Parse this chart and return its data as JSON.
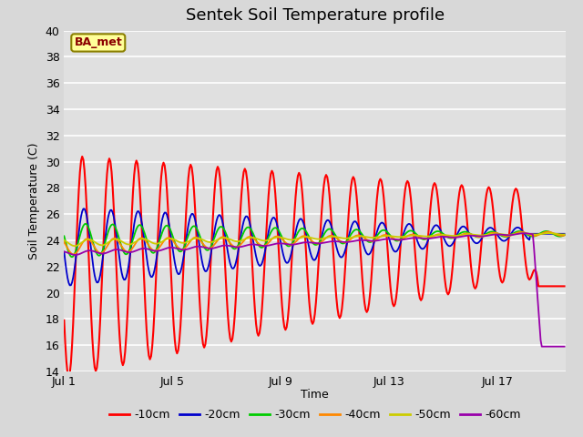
{
  "title": "Sentek Soil Temperature profile",
  "xlabel": "Time",
  "ylabel": "Soil Temperature (C)",
  "ylim": [
    14,
    40
  ],
  "yticks": [
    14,
    16,
    18,
    20,
    22,
    24,
    26,
    28,
    30,
    32,
    34,
    36,
    38,
    40
  ],
  "xtick_labels": [
    "Jul 1",
    "Jul 5",
    "Jul 9",
    "Jul 13",
    "Jul 17"
  ],
  "xtick_positions": [
    0,
    4,
    8,
    12,
    16
  ],
  "xlim": [
    0,
    18.5
  ],
  "legend_label": "BA_met",
  "legend_box_facecolor": "#ffff99",
  "legend_box_edgecolor": "#8B8000",
  "legend_text_color": "#8B0000",
  "series_colors": [
    "#ff0000",
    "#0000cc",
    "#00cc00",
    "#ff8800",
    "#cccc00",
    "#9900aa"
  ],
  "series_labels": [
    "-10cm",
    "-20cm",
    "-30cm",
    "-40cm",
    "-50cm",
    "-60cm"
  ],
  "fig_facecolor": "#d8d8d8",
  "plot_facecolor": "#e0e0e0",
  "grid_color": "#ffffff",
  "title_fontsize": 13,
  "axis_label_fontsize": 9,
  "tick_fontsize": 9
}
